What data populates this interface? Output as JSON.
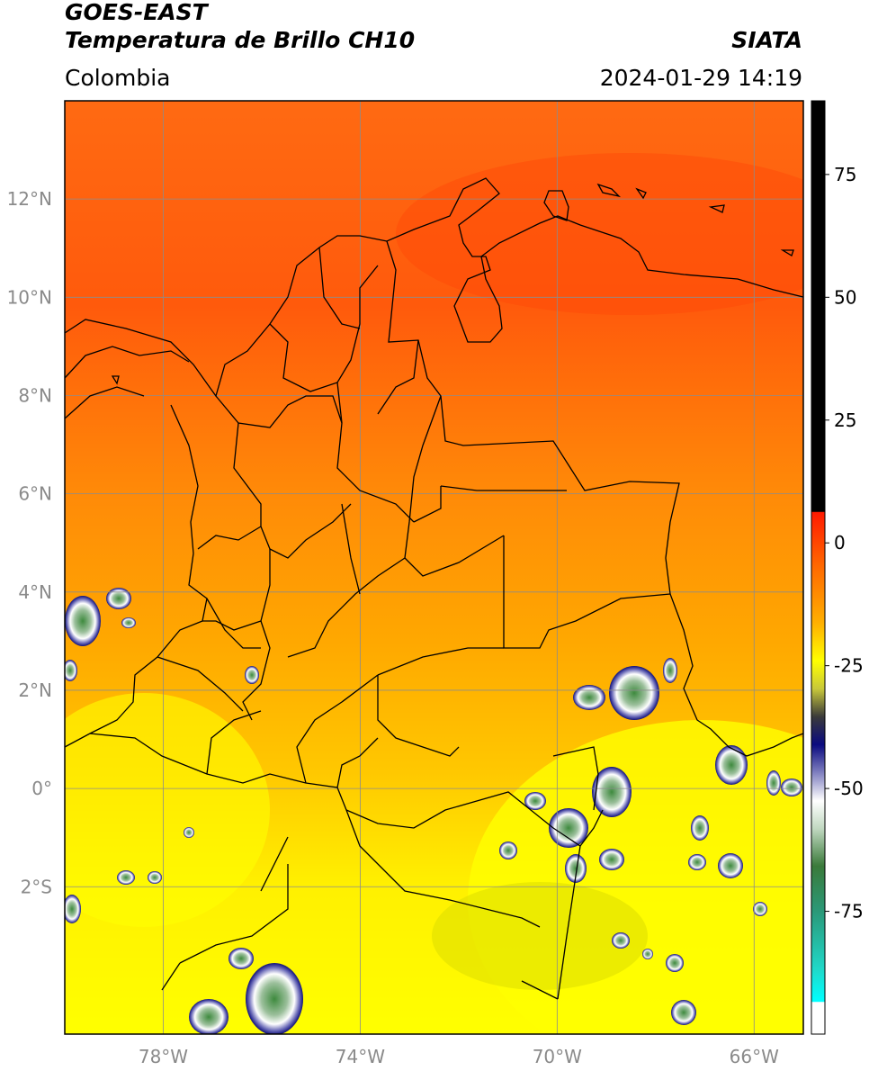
{
  "header": {
    "satellite": "GOES-EAST",
    "product": "Temperatura de Brillo CH10",
    "region": "Colombia",
    "source": "SIATA",
    "datetime": "2024-01-29 14:19"
  },
  "map": {
    "lon_range": [
      -80,
      -65
    ],
    "lat_range": [
      -5,
      14
    ],
    "lon_ticks": [
      {
        "value": -78,
        "label": "78°W"
      },
      {
        "value": -74,
        "label": "74°W"
      },
      {
        "value": -70,
        "label": "70°W"
      },
      {
        "value": -66,
        "label": "66°W"
      }
    ],
    "lat_ticks": [
      {
        "value": 12,
        "label": "12°N"
      },
      {
        "value": 10,
        "label": "10°N"
      },
      {
        "value": 8,
        "label": "8°N"
      },
      {
        "value": 6,
        "label": "6°N"
      },
      {
        "value": 4,
        "label": "4°N"
      },
      {
        "value": 2,
        "label": "2°N"
      },
      {
        "value": 0,
        "label": "0°"
      },
      {
        "value": -2,
        "label": "2°S"
      }
    ],
    "grid": true,
    "colors": {
      "warm_top": "#ff5a10",
      "mid": "#ffa000",
      "south": "#ffff00",
      "cloud_edge": "#1a1a8a",
      "cloud_core": "#3e8a3e",
      "border": "#000000"
    }
  },
  "colorbar": {
    "range": [
      -100,
      90
    ],
    "ticks": [
      {
        "value": 75,
        "label": "75"
      },
      {
        "value": 50,
        "label": "50"
      },
      {
        "value": 25,
        "label": "25"
      },
      {
        "value": 0,
        "label": "0"
      },
      {
        "value": -25,
        "label": "-25"
      },
      {
        "value": -50,
        "label": "-50"
      },
      {
        "value": -75,
        "label": "-75"
      }
    ]
  }
}
